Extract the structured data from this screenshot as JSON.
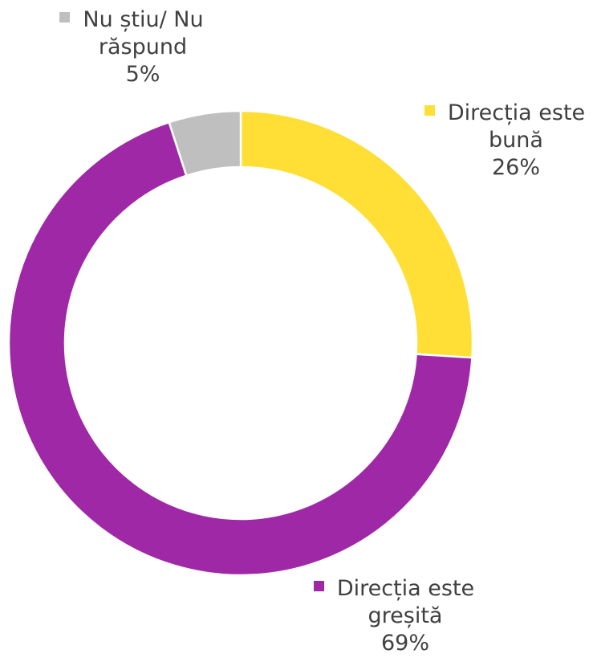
{
  "chart_data": {
    "type": "pie",
    "donut": true,
    "title": "",
    "start_angle_deg": 0,
    "direction": "clockwise",
    "slices": [
      {
        "label_line1": "Direcția este",
        "label_line2": "bună",
        "label": "Direcția este bună",
        "value": 26,
        "value_label": "26%",
        "color": "#FFDF35"
      },
      {
        "label_line1": "Direcția este",
        "label_line2": "greșită",
        "label": "Direcția este greșită",
        "value": 69,
        "value_label": "69%",
        "color": "#9F28A6"
      },
      {
        "label_line1": "Nu știu/ Nu",
        "label_line2": "răspund",
        "label": "Nu știu/ Nu răspund",
        "value": 5,
        "value_label": "5%",
        "color": "#BFBFBF"
      }
    ]
  }
}
